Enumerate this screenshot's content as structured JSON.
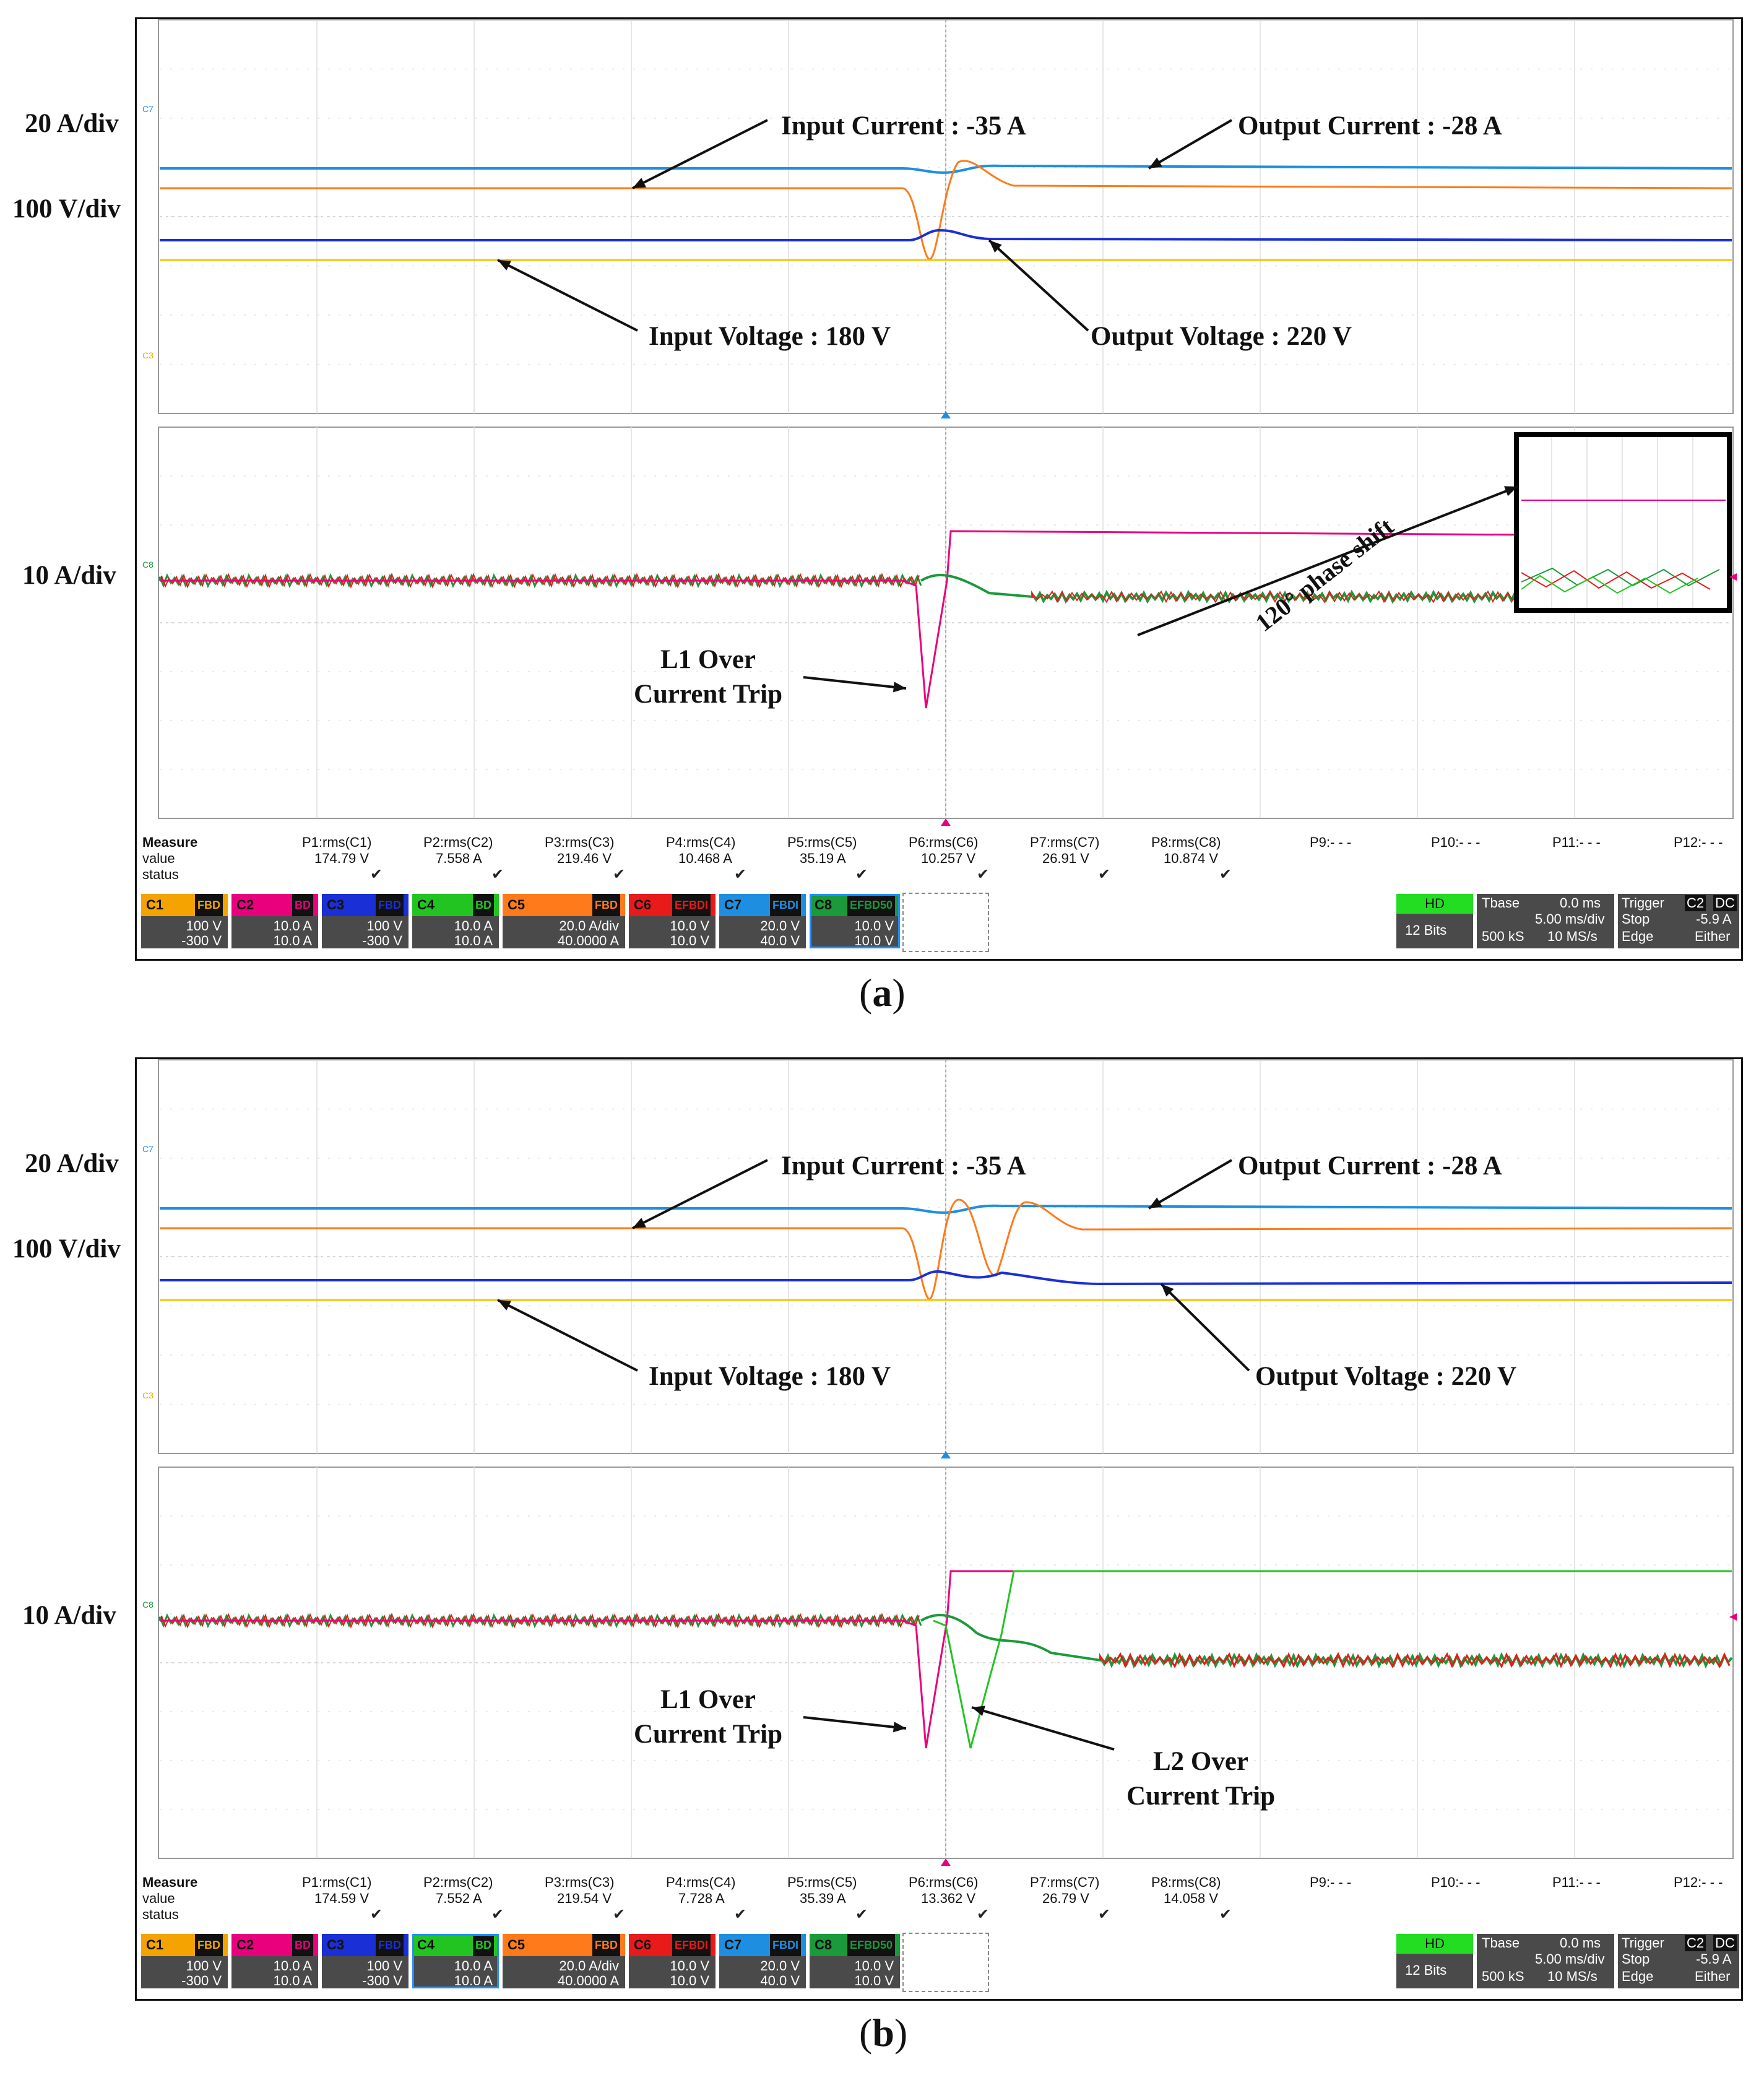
{
  "panels": [
    {
      "caption": "a",
      "scale_labels": {
        "top_current": "20 A/div",
        "top_voltage": "100 V/div",
        "bottom_current": "10 A/div"
      },
      "annotations": {
        "input_current": "Input Current :  -35 A",
        "output_current": "Output Current :  -28 A",
        "input_voltage": "Input Voltage :  180 V",
        "output_voltage": "Output Voltage :  220 V",
        "l1_trip_1": "L1 Over",
        "l1_trip_2": "Current Trip",
        "phase_shift": "120° phase shift"
      },
      "channel_markers": {
        "c7": "C7",
        "c3": "C3",
        "c8": "C8"
      },
      "measure": {
        "header": [
          "Measure",
          "P1:rms(C1)",
          "P2:rms(C2)",
          "P3:rms(C3)",
          "P4:rms(C4)",
          "P5:rms(C5)",
          "P6:rms(C6)",
          "P7:rms(C7)",
          "P8:rms(C8)",
          "P9:- - -",
          "P10:- - -",
          "P11:- - -",
          "P12:- - -"
        ],
        "values": [
          "value",
          "174.79 V",
          "7.558 A",
          "219.46 V",
          "10.468 A",
          "35.19 A",
          "10.257 V",
          "26.91 V",
          "10.874 V"
        ],
        "status": "status",
        "check": "✔"
      },
      "channels": [
        {
          "name": "C1",
          "flags": "FBD",
          "scale": "100 V",
          "offset": "-300 V",
          "color": "#f5a300"
        },
        {
          "name": "C2",
          "flags": "BD",
          "scale": "10.0 A",
          "offset": "10.0 A",
          "color": "#e8007c"
        },
        {
          "name": "C3",
          "flags": "FBD",
          "scale": "100 V",
          "offset": "-300 V",
          "color": "#1a2fd6"
        },
        {
          "name": "C4",
          "flags": "BD",
          "scale": "10.0 A",
          "offset": "10.0 A",
          "color": "#22c422"
        },
        {
          "name": "C5",
          "flags": "FBD",
          "scale": "20.0 A/div",
          "offset": "40.0000 A",
          "color": "#ff7a1a"
        },
        {
          "name": "C6",
          "flags": "EFBDI",
          "scale": "10.0 V",
          "offset": "10.0 V",
          "color": "#e81a1a"
        },
        {
          "name": "C7",
          "flags": "FBDI",
          "scale": "20.0 V",
          "offset": "40.0 V",
          "color": "#1e8fe0"
        },
        {
          "name": "C8",
          "flags": "EFBD50",
          "scale": "10.0 V",
          "offset": "10.0 V",
          "color": "#1a9a3a"
        }
      ],
      "status_box": {
        "hd": "HD",
        "bits": "12 Bits",
        "tbase_label": "Tbase",
        "tbase_val": "0.0 ms",
        "tdiv": "5.00 ms/div",
        "samples": "500 kS",
        "rate": "10 MS/s",
        "trigger_label": "Trigger",
        "trigger_ch": "C2",
        "trigger_cpl": "DC",
        "mode": "Stop",
        "level": "-5.9 A",
        "type": "Edge",
        "slope": "Either"
      }
    },
    {
      "caption": "b",
      "scale_labels": {
        "top_current": "20 A/div",
        "top_voltage": "100 V/div",
        "bottom_current": "10 A/div"
      },
      "annotations": {
        "input_current": "Input Current :  -35 A",
        "output_current": "Output Current :  -28 A",
        "input_voltage": "Input Voltage :  180 V",
        "output_voltage": "Output Voltage :  220 V",
        "l1_trip_1": "L1 Over",
        "l1_trip_2": "Current Trip",
        "l2_trip_1": "L2 Over",
        "l2_trip_2": "Current Trip"
      },
      "channel_markers": {
        "c7": "C7",
        "c3": "C3",
        "c8": "C8"
      },
      "measure": {
        "header": [
          "Measure",
          "P1:rms(C1)",
          "P2:rms(C2)",
          "P3:rms(C3)",
          "P4:rms(C4)",
          "P5:rms(C5)",
          "P6:rms(C6)",
          "P7:rms(C7)",
          "P8:rms(C8)",
          "P9:- - -",
          "P10:- - -",
          "P11:- - -",
          "P12:- - -"
        ],
        "values": [
          "value",
          "174.59 V",
          "7.552 A",
          "219.54 V",
          "7.728 A",
          "35.39 A",
          "13.362 V",
          "26.79 V",
          "14.058 V"
        ],
        "status": "status",
        "check": "✔"
      },
      "channels": [
        {
          "name": "C1",
          "flags": "FBD",
          "scale": "100 V",
          "offset": "-300 V",
          "color": "#f5a300"
        },
        {
          "name": "C2",
          "flags": "BD",
          "scale": "10.0 A",
          "offset": "10.0 A",
          "color": "#e8007c"
        },
        {
          "name": "C3",
          "flags": "FBD",
          "scale": "100 V",
          "offset": "-300 V",
          "color": "#1a2fd6"
        },
        {
          "name": "C4",
          "flags": "BD",
          "scale": "10.0 A",
          "offset": "10.0 A",
          "color": "#22c422"
        },
        {
          "name": "C5",
          "flags": "FBD",
          "scale": "20.0 A/div",
          "offset": "40.0000 A",
          "color": "#ff7a1a"
        },
        {
          "name": "C6",
          "flags": "EFBDI",
          "scale": "10.0 V",
          "offset": "10.0 V",
          "color": "#e81a1a"
        },
        {
          "name": "C7",
          "flags": "FBDI",
          "scale": "20.0 V",
          "offset": "40.0 V",
          "color": "#1e8fe0"
        },
        {
          "name": "C8",
          "flags": "EFBD50",
          "scale": "10.0 V",
          "offset": "10.0 V",
          "color": "#1a9a3a"
        }
      ],
      "status_box": {
        "hd": "HD",
        "bits": "12 Bits",
        "tbase_label": "Tbase",
        "tbase_val": "0.0 ms",
        "tdiv": "5.00 ms/div",
        "samples": "500 kS",
        "rate": "10 MS/s",
        "trigger_label": "Trigger",
        "trigger_ch": "C2",
        "trigger_cpl": "DC",
        "mode": "Stop",
        "level": "-5.9 A",
        "type": "Edge",
        "slope": "Either"
      }
    }
  ],
  "trace_colors": {
    "input_current": "#1e8fe0",
    "output_current": "#ff7a1a",
    "input_voltage": "#f5c400",
    "output_voltage": "#1a2fd6",
    "l1": "#e8007c",
    "l2": "#22c422",
    "noise_red": "#e81a1a",
    "noise_green": "#1a9a3a"
  }
}
